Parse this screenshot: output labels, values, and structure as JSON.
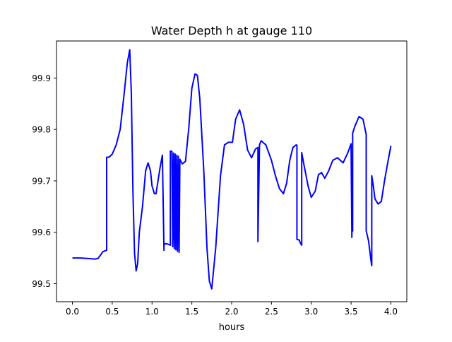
{
  "chart_data": {
    "type": "line",
    "title": "Water Depth h at gauge 110",
    "xlabel": "hours",
    "ylabel": "",
    "xlim": [
      -0.2,
      4.2
    ],
    "ylim": [
      99.465,
      99.972
    ],
    "xticks": [
      0.0,
      0.5,
      1.0,
      1.5,
      2.0,
      2.5,
      3.0,
      3.5,
      4.0
    ],
    "xtick_labels": [
      "0.0",
      "0.5",
      "1.0",
      "1.5",
      "2.0",
      "2.5",
      "3.0",
      "3.5",
      "4.0"
    ],
    "yticks": [
      99.5,
      99.6,
      99.7,
      99.8,
      99.9
    ],
    "ytick_labels": [
      "99.5",
      "99.6",
      "99.7",
      "99.8",
      "99.9"
    ],
    "grid": false,
    "series": [
      {
        "color": "#0000ff",
        "x": [
          0.0,
          0.1,
          0.2,
          0.28,
          0.32,
          0.35,
          0.38,
          0.41,
          0.43,
          0.43,
          0.46,
          0.5,
          0.55,
          0.6,
          0.65,
          0.69,
          0.72,
          0.74,
          0.76,
          0.78,
          0.8,
          0.82,
          0.84,
          0.88,
          0.92,
          0.95,
          0.98,
          1.0,
          1.03,
          1.05,
          1.07,
          1.1,
          1.13,
          1.15,
          1.15,
          1.17,
          1.2,
          1.23,
          1.23,
          1.25,
          1.26,
          1.27,
          1.28,
          1.29,
          1.3,
          1.31,
          1.32,
          1.33,
          1.34,
          1.35,
          1.38,
          1.42,
          1.46,
          1.5,
          1.54,
          1.57,
          1.6,
          1.65,
          1.69,
          1.72,
          1.75,
          1.8,
          1.86,
          1.91,
          1.96,
          2.01,
          2.05,
          2.1,
          2.15,
          2.2,
          2.25,
          2.3,
          2.33,
          2.33,
          2.35,
          2.37,
          2.43,
          2.5,
          2.55,
          2.6,
          2.65,
          2.69,
          2.73,
          2.77,
          2.81,
          2.82,
          2.82,
          2.85,
          2.86,
          2.88,
          2.88,
          2.91,
          2.96,
          3.0,
          3.05,
          3.09,
          3.13,
          3.17,
          3.22,
          3.27,
          3.33,
          3.4,
          3.46,
          3.5,
          3.51,
          3.51,
          3.52,
          3.52,
          3.55,
          3.6,
          3.65,
          3.69,
          3.69,
          3.72,
          3.75,
          3.76,
          3.76,
          3.78,
          3.8,
          3.84,
          3.88,
          3.92,
          3.96,
          4.0
        ],
        "y": [
          99.55,
          99.55,
          99.549,
          99.548,
          99.549,
          99.555,
          99.562,
          99.564,
          99.565,
          99.746,
          99.746,
          99.752,
          99.77,
          99.8,
          99.87,
          99.93,
          99.955,
          99.87,
          99.68,
          99.56,
          99.525,
          99.54,
          99.6,
          99.65,
          99.72,
          99.735,
          99.72,
          99.69,
          99.675,
          99.675,
          99.695,
          99.725,
          99.75,
          99.565,
          99.575,
          99.578,
          99.577,
          99.575,
          99.758,
          99.757,
          99.572,
          99.754,
          99.568,
          99.752,
          99.566,
          99.75,
          99.563,
          99.748,
          99.561,
          99.742,
          99.733,
          99.738,
          99.8,
          99.88,
          99.908,
          99.905,
          99.86,
          99.72,
          99.57,
          99.505,
          99.49,
          99.57,
          99.71,
          99.77,
          99.775,
          99.775,
          99.82,
          99.838,
          99.81,
          99.76,
          99.745,
          99.762,
          99.765,
          99.582,
          99.77,
          99.778,
          99.77,
          99.74,
          99.71,
          99.685,
          99.675,
          99.695,
          99.74,
          99.765,
          99.77,
          99.769,
          99.586,
          99.585,
          99.58,
          99.575,
          99.755,
          99.73,
          99.69,
          99.668,
          99.68,
          99.712,
          99.716,
          99.705,
          99.72,
          99.74,
          99.745,
          99.735,
          99.755,
          99.772,
          99.59,
          99.6,
          99.603,
          99.793,
          99.807,
          99.825,
          99.82,
          99.79,
          99.603,
          99.583,
          99.545,
          99.535,
          99.71,
          99.69,
          99.665,
          99.655,
          99.66,
          99.7,
          99.735,
          99.768
        ]
      }
    ]
  }
}
